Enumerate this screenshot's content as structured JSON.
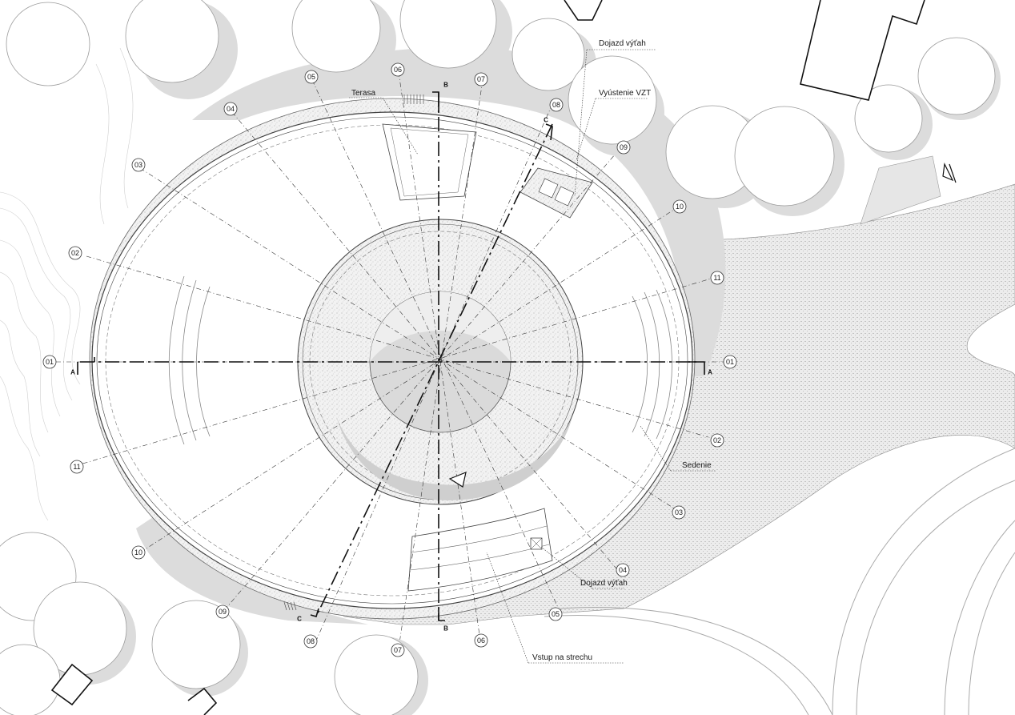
{
  "labels": {
    "terasa": "Terasa",
    "dojazd_vytah_top": "Dojazd výťah",
    "vyustenie_vzt": "Vyústenie VZT",
    "sedenie": "Sedenie",
    "dojazd_vytah_bottom": "Dojazd výťah",
    "vstup_na_strechu": "Vstup na strechu"
  },
  "sections": {
    "a_left": "A",
    "a_right": "A",
    "b_top": "B",
    "b_bottom": "B",
    "c_top": "C",
    "c_bottom": "C"
  },
  "axes": {
    "a01_left": "01",
    "a01_right": "01",
    "a02_left": "02",
    "a02_right": "02",
    "a03_left": "03",
    "a03_right": "03",
    "a04_top": "04",
    "a04_bottom": "04",
    "a05_top": "05",
    "a05_bottom": "05",
    "a06_top": "06",
    "a06_bottom": "06",
    "a07_top": "07",
    "a07_bottom": "07",
    "a08_top": "08",
    "a08_bottom": "08",
    "a09_top": "09",
    "a09_bottom": "09",
    "a10_top": "10",
    "a10_bottom": "10",
    "a11_right": "11",
    "a11_left": "11"
  },
  "colors": {
    "shadow": "#dcdcdc",
    "paving": "#e8e8e8",
    "line": "#333333"
  }
}
